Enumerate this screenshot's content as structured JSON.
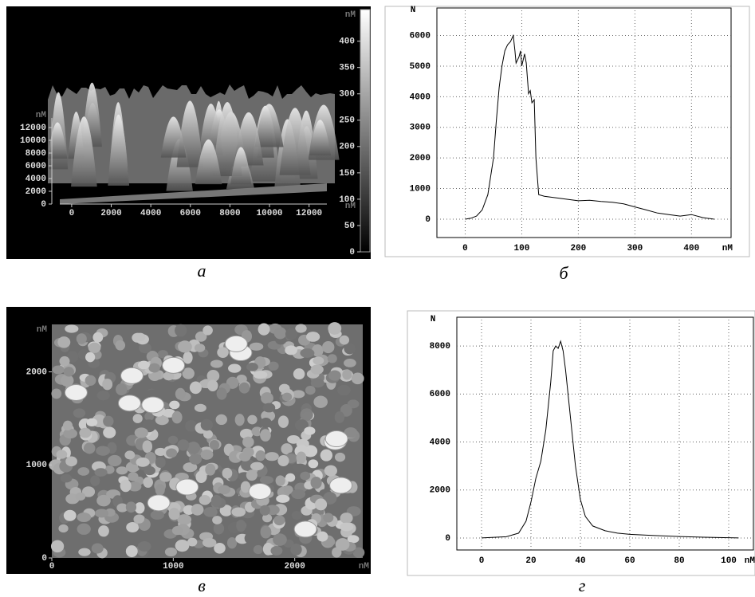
{
  "chart_data": [
    {
      "type": "image3d",
      "caption": "а",
      "unit_labels": [
        "nM",
        "nM",
        "nM"
      ],
      "xlim": [
        -600,
        12900
      ],
      "xticks": [
        0,
        2000,
        4000,
        6000,
        8000,
        10000,
        12000
      ],
      "ylim": [
        0,
        13500
      ],
      "yticks": [
        0,
        2000,
        4000,
        6000,
        8000,
        10000,
        12000
      ],
      "colorbar_lim": [
        0,
        460
      ],
      "colorbar_ticks": [
        0,
        50,
        100,
        150,
        200,
        250,
        300,
        350,
        400
      ]
    },
    {
      "type": "line",
      "caption": "б",
      "ylabel": "N",
      "xunit": "nM",
      "color": "#000000",
      "grid": true,
      "x": [
        0,
        10,
        20,
        30,
        40,
        50,
        55,
        60,
        65,
        70,
        75,
        80,
        85,
        88,
        90,
        95,
        98,
        100,
        105,
        108,
        112,
        115,
        118,
        122,
        125,
        130,
        140,
        160,
        180,
        200,
        220,
        240,
        260,
        280,
        300,
        320,
        340,
        360,
        380,
        400,
        420,
        440
      ],
      "values": [
        0,
        30,
        100,
        300,
        800,
        2000,
        3200,
        4300,
        5000,
        5500,
        5700,
        5800,
        6000,
        5500,
        5100,
        5300,
        5500,
        5000,
        5400,
        5100,
        4100,
        4200,
        3800,
        3900,
        2000,
        800,
        750,
        700,
        650,
        600,
        620,
        580,
        550,
        500,
        400,
        300,
        200,
        150,
        100,
        150,
        50,
        0
      ],
      "xlim": [
        -50,
        470
      ],
      "xticks": [
        0,
        100,
        200,
        300,
        400
      ],
      "ylim": [
        -600,
        6900
      ],
      "yticks": [
        0,
        1000,
        2000,
        3000,
        4000,
        5000,
        6000
      ]
    },
    {
      "type": "image2d",
      "caption": "в",
      "unit_labels": [
        "nM",
        "nM"
      ],
      "xlim": [
        0,
        2560
      ],
      "xticks": [
        0,
        1000,
        2000
      ],
      "ylim": [
        0,
        2510
      ],
      "yticks": [
        0,
        1000,
        2000
      ]
    },
    {
      "type": "line",
      "caption": "г",
      "ylabel": "N",
      "xunit": "nM",
      "color": "#000000",
      "grid": true,
      "x": [
        0,
        10,
        15,
        18,
        20,
        22,
        24,
        26,
        28,
        29,
        30,
        31,
        32,
        33,
        34,
        36,
        38,
        40,
        42,
        45,
        50,
        55,
        60,
        70,
        80,
        90,
        100,
        104
      ],
      "values": [
        0,
        50,
        200,
        700,
        1500,
        2500,
        3200,
        4500,
        6500,
        7800,
        8000,
        7900,
        8200,
        7800,
        7000,
        5000,
        3000,
        1600,
        900,
        500,
        300,
        200,
        150,
        100,
        60,
        30,
        10,
        0
      ],
      "xlim": [
        -10,
        110
      ],
      "xticks": [
        0,
        20,
        40,
        60,
        80,
        100
      ],
      "ylim": [
        -500,
        9200
      ],
      "yticks": [
        0,
        2000,
        4000,
        6000,
        8000
      ]
    }
  ]
}
